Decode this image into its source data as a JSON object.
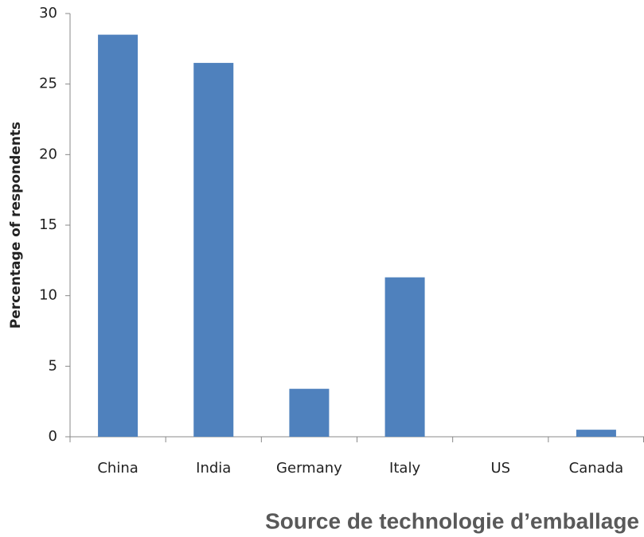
{
  "chart_data": {
    "type": "bar",
    "x_label": "Source de technologie d’emballage",
    "y_label": "Percentage of respondents",
    "categories": [
      "China",
      "India",
      "Germany",
      "Italy",
      "US",
      "Canada"
    ],
    "values": [
      28.5,
      26.5,
      3.4,
      11.3,
      0,
      0.5
    ],
    "color": "#4f81bd",
    "ylim": [
      0,
      30
    ],
    "yticks": [
      0,
      5,
      10,
      15,
      20,
      25,
      30
    ],
    "grid": false
  }
}
